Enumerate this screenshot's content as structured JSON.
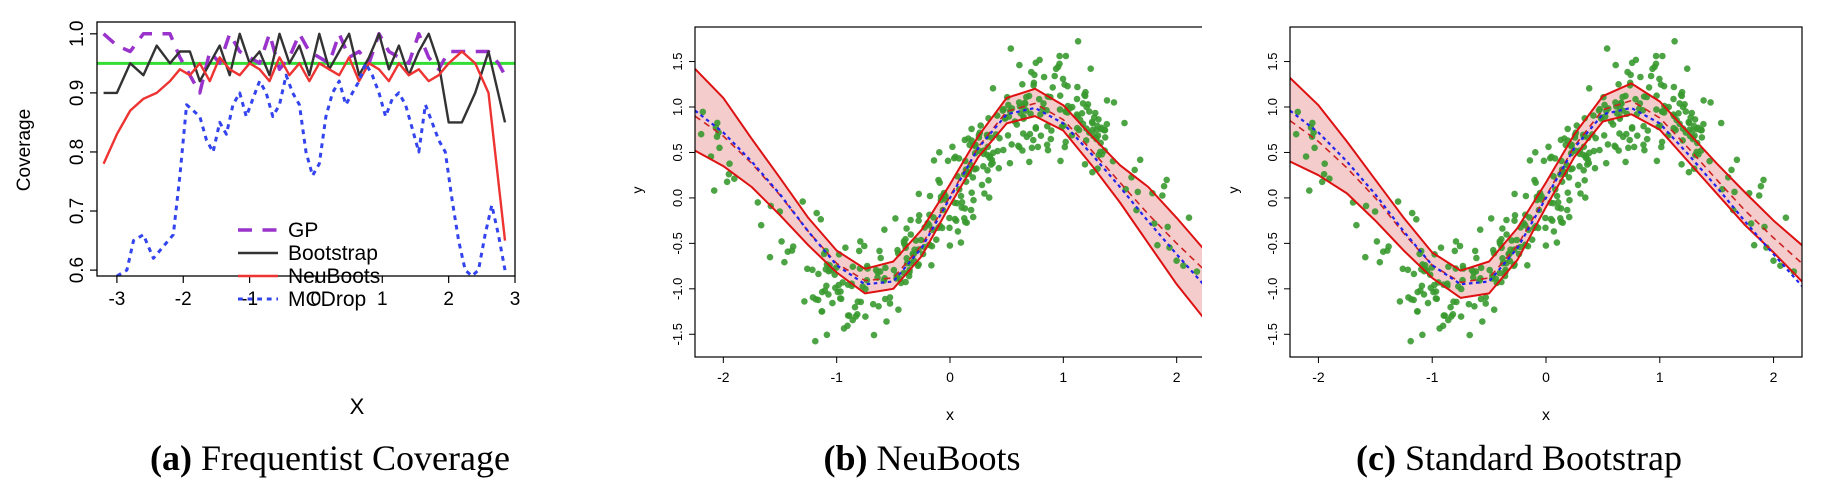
{
  "panels": [
    {
      "id": "a",
      "caption_letter": "(a)",
      "caption_text": "Frequentist Coverage"
    },
    {
      "id": "b",
      "caption_letter": "(b)",
      "caption_text": "NeuBoots"
    },
    {
      "id": "c",
      "caption_letter": "(c)",
      "caption_text": "Standard Bootstrap"
    }
  ],
  "chart_data": [
    {
      "type": "line",
      "title": "",
      "xlabel": "X",
      "ylabel": "Coverage",
      "xlim": [
        -3.3,
        3.0
      ],
      "ylim": [
        0.59,
        1.02
      ],
      "xticks": [
        -3,
        -2,
        -1,
        0,
        1,
        2,
        3
      ],
      "yticks": [
        0.6,
        0.7,
        0.8,
        0.9,
        1.0
      ],
      "ytick_labels": [
        "0.6",
        "0.7",
        "0.8",
        "0.9",
        "1.0"
      ],
      "grid": false,
      "legend": "lower-center",
      "reference_line": {
        "y": 0.95,
        "color": "#33dd33"
      },
      "series": [
        {
          "name": "GP",
          "color": "#9933cc",
          "style": "dashed",
          "x": [
            -3.2,
            -3.0,
            -2.8,
            -2.6,
            -2.4,
            -2.2,
            -2.05,
            -1.9,
            -1.75,
            -1.6,
            -1.45,
            -1.3,
            -1.15,
            -1.0,
            -0.85,
            -0.7,
            -0.55,
            -0.4,
            -0.25,
            -0.1,
            0.05,
            0.2,
            0.35,
            0.5,
            0.65,
            0.8,
            0.95,
            1.1,
            1.25,
            1.4,
            1.55,
            1.7,
            1.85,
            2.0,
            2.2,
            2.4,
            2.6,
            2.75,
            2.85
          ],
          "y": [
            1.0,
            0.98,
            0.97,
            1.0,
            1.0,
            1.0,
            0.96,
            0.93,
            0.9,
            0.97,
            0.95,
            1.0,
            0.97,
            0.96,
            0.95,
            1.0,
            0.94,
            0.96,
            1.0,
            0.97,
            0.96,
            0.95,
            1.0,
            0.96,
            0.97,
            0.95,
            1.0,
            0.97,
            0.96,
            0.95,
            1.0,
            0.96,
            0.94,
            0.97,
            0.97,
            0.97,
            0.97,
            0.95,
            0.93
          ]
        },
        {
          "name": "Bootstrap",
          "color": "#333333",
          "style": "solid",
          "x": [
            -3.2,
            -3.0,
            -2.8,
            -2.6,
            -2.4,
            -2.2,
            -2.05,
            -1.9,
            -1.75,
            -1.6,
            -1.45,
            -1.3,
            -1.15,
            -1.0,
            -0.85,
            -0.7,
            -0.55,
            -0.4,
            -0.25,
            -0.1,
            0.05,
            0.2,
            0.35,
            0.5,
            0.65,
            0.8,
            0.95,
            1.1,
            1.25,
            1.4,
            1.55,
            1.7,
            1.85,
            2.0,
            2.2,
            2.4,
            2.6,
            2.85
          ],
          "y": [
            0.9,
            0.9,
            0.95,
            0.93,
            0.98,
            0.95,
            0.97,
            0.97,
            0.92,
            0.95,
            0.98,
            0.93,
            1.0,
            0.95,
            0.97,
            0.93,
            1.0,
            0.95,
            0.98,
            0.93,
            1.0,
            0.94,
            0.97,
            1.0,
            0.93,
            0.96,
            1.0,
            0.94,
            0.98,
            0.93,
            0.97,
            1.0,
            0.95,
            0.85,
            0.85,
            0.9,
            0.97,
            0.85
          ]
        },
        {
          "name": "NeuBoots",
          "color": "#ee3333",
          "style": "solid",
          "x": [
            -3.2,
            -3.0,
            -2.8,
            -2.6,
            -2.4,
            -2.2,
            -2.05,
            -1.9,
            -1.75,
            -1.6,
            -1.45,
            -1.3,
            -1.15,
            -1.0,
            -0.85,
            -0.7,
            -0.55,
            -0.4,
            -0.25,
            -0.1,
            0.05,
            0.2,
            0.35,
            0.5,
            0.65,
            0.8,
            0.95,
            1.1,
            1.25,
            1.4,
            1.55,
            1.7,
            1.85,
            2.0,
            2.2,
            2.4,
            2.6,
            2.85
          ],
          "y": [
            0.78,
            0.83,
            0.87,
            0.89,
            0.9,
            0.92,
            0.94,
            0.93,
            0.95,
            0.92,
            0.96,
            0.94,
            0.93,
            0.95,
            0.94,
            0.92,
            0.96,
            0.93,
            0.95,
            0.92,
            0.95,
            0.94,
            0.93,
            0.96,
            0.92,
            0.95,
            0.94,
            0.92,
            0.95,
            0.93,
            0.94,
            0.92,
            0.93,
            0.95,
            0.97,
            0.95,
            0.9,
            0.65
          ]
        },
        {
          "name": "MCDrop",
          "color": "#3344ee",
          "style": "dotted",
          "x": [
            -3.0,
            -2.85,
            -2.75,
            -2.6,
            -2.45,
            -2.3,
            -2.15,
            -2.05,
            -1.95,
            -1.85,
            -1.75,
            -1.65,
            -1.55,
            -1.45,
            -1.35,
            -1.25,
            -1.15,
            -1.05,
            -0.95,
            -0.85,
            -0.75,
            -0.65,
            -0.55,
            -0.45,
            -0.35,
            -0.25,
            -0.15,
            -0.05,
            0.05,
            0.15,
            0.25,
            0.35,
            0.45,
            0.55,
            0.65,
            0.75,
            0.85,
            0.95,
            1.05,
            1.15,
            1.25,
            1.35,
            1.45,
            1.55,
            1.65,
            1.75,
            1.85,
            1.95,
            2.05,
            2.15,
            2.25,
            2.35,
            2.45,
            2.55,
            2.65,
            2.75,
            2.85
          ],
          "y": [
            0.59,
            0.6,
            0.65,
            0.66,
            0.62,
            0.64,
            0.66,
            0.76,
            0.88,
            0.87,
            0.86,
            0.82,
            0.8,
            0.85,
            0.83,
            0.88,
            0.9,
            0.86,
            0.89,
            0.92,
            0.9,
            0.86,
            0.88,
            0.93,
            0.9,
            0.88,
            0.8,
            0.76,
            0.78,
            0.86,
            0.9,
            0.92,
            0.88,
            0.9,
            0.92,
            0.95,
            0.93,
            0.9,
            0.86,
            0.89,
            0.9,
            0.88,
            0.84,
            0.8,
            0.88,
            0.85,
            0.82,
            0.8,
            0.72,
            0.65,
            0.6,
            0.59,
            0.6,
            0.66,
            0.71,
            0.66,
            0.6
          ]
        }
      ]
    },
    {
      "type": "scatter",
      "title": "",
      "xlabel": "x",
      "ylabel": "y",
      "xlim": [
        -2.25,
        2.25
      ],
      "ylim": [
        -1.75,
        1.88
      ],
      "xticks": [
        -2,
        -1,
        0,
        1,
        2
      ],
      "yticks": [
        -1.5,
        -1.0,
        -0.5,
        0.0,
        0.5,
        1.0,
        1.5
      ],
      "ytick_labels": [
        "-1.5",
        "-1.0",
        "-0.5",
        "0.0",
        "0.5",
        "1.0",
        "1.5"
      ],
      "grid": false,
      "curves": {
        "x": [
          -2.25,
          -2.0,
          -1.75,
          -1.5,
          -1.25,
          -1.0,
          -0.75,
          -0.5,
          -0.25,
          0.0,
          0.25,
          0.5,
          0.75,
          1.0,
          1.25,
          1.5,
          1.75,
          2.0,
          2.25
        ],
        "truth": {
          "color": "#2222ee",
          "style": "dotted",
          "values": [
            0.96,
            0.72,
            0.4,
            0.04,
            -0.37,
            -0.74,
            -0.95,
            -0.92,
            -0.55,
            0.0,
            0.55,
            0.92,
            0.99,
            0.82,
            0.48,
            0.12,
            -0.26,
            -0.62,
            -0.97
          ]
        },
        "mean": {
          "color": "#cc2222",
          "style": "dashed",
          "values": [
            0.9,
            0.68,
            0.38,
            0.03,
            -0.37,
            -0.72,
            -0.91,
            -0.88,
            -0.52,
            0.02,
            0.56,
            0.95,
            1.04,
            0.86,
            0.52,
            0.17,
            -0.18,
            -0.5,
            -0.8
          ]
        },
        "band_lower": {
          "color": "#dd1111",
          "values": [
            0.52,
            0.35,
            0.12,
            -0.19,
            -0.52,
            -0.82,
            -1.05,
            -1.0,
            -0.64,
            -0.08,
            0.45,
            0.82,
            0.9,
            0.74,
            0.36,
            -0.05,
            -0.5,
            -0.95,
            -1.34
          ]
        },
        "band_upper": {
          "color": "#dd1111",
          "values": [
            1.42,
            1.1,
            0.65,
            0.22,
            -0.22,
            -0.58,
            -0.78,
            -0.7,
            -0.35,
            0.15,
            0.68,
            1.1,
            1.2,
            1.02,
            0.68,
            0.36,
            0.12,
            -0.22,
            -0.58
          ]
        },
        "band_fill": "#f5cccc"
      },
      "points": {
        "color": "#3a9a30",
        "n": 400,
        "seed": 7,
        "noise_sd": 0.28
      }
    },
    {
      "type": "scatter",
      "title": "",
      "xlabel": "x",
      "ylabel": "y",
      "xlim": [
        -2.25,
        2.25
      ],
      "ylim": [
        -1.75,
        1.88
      ],
      "xticks": [
        -2,
        -1,
        0,
        1,
        2
      ],
      "yticks": [
        -1.5,
        -1.0,
        -0.5,
        0.0,
        0.5,
        1.0,
        1.5
      ],
      "ytick_labels": [
        "-1.5",
        "-1.0",
        "-0.5",
        "0.0",
        "0.5",
        "1.0",
        "1.5"
      ],
      "grid": false,
      "curves": {
        "x": [
          -2.25,
          -2.0,
          -1.75,
          -1.5,
          -1.25,
          -1.0,
          -0.75,
          -0.5,
          -0.25,
          0.0,
          0.25,
          0.5,
          0.75,
          1.0,
          1.25,
          1.5,
          1.75,
          2.0,
          2.25
        ],
        "truth": {
          "color": "#2222ee",
          "style": "dotted",
          "values": [
            0.96,
            0.72,
            0.4,
            0.04,
            -0.37,
            -0.74,
            -0.95,
            -0.92,
            -0.55,
            0.0,
            0.55,
            0.92,
            0.99,
            0.82,
            0.48,
            0.12,
            -0.26,
            -0.62,
            -0.97
          ]
        },
        "mean": {
          "color": "#cc2222",
          "style": "dashed",
          "values": [
            0.85,
            0.62,
            0.33,
            0.0,
            -0.39,
            -0.74,
            -0.93,
            -0.88,
            -0.52,
            0.02,
            0.57,
            0.97,
            1.07,
            0.88,
            0.55,
            0.2,
            -0.14,
            -0.44,
            -0.72
          ]
        },
        "band_lower": {
          "color": "#dd1111",
          "values": [
            0.4,
            0.25,
            0.05,
            -0.25,
            -0.58,
            -0.88,
            -1.1,
            -1.05,
            -0.68,
            -0.1,
            0.45,
            0.84,
            0.92,
            0.75,
            0.4,
            0.05,
            -0.3,
            -0.6,
            -0.92
          ]
        },
        "band_upper": {
          "color": "#dd1111",
          "values": [
            1.32,
            1.02,
            0.62,
            0.2,
            -0.22,
            -0.6,
            -0.8,
            -0.7,
            -0.33,
            0.17,
            0.7,
            1.12,
            1.26,
            1.06,
            0.72,
            0.38,
            0.06,
            -0.25,
            -0.52
          ]
        },
        "band_fill": "#f5cccc"
      },
      "points": {
        "color": "#3a9a30",
        "n": 400,
        "seed": 7,
        "noise_sd": 0.28
      }
    }
  ]
}
